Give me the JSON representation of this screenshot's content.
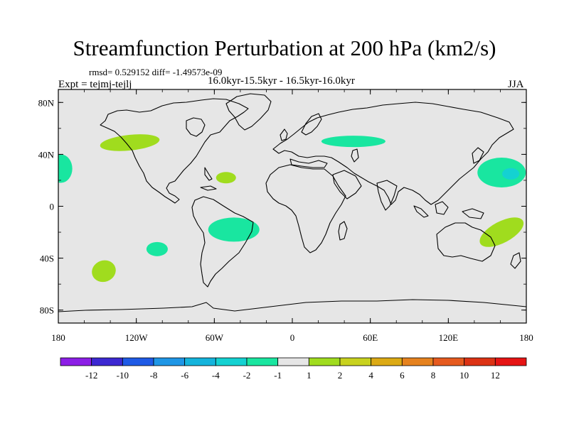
{
  "chart_data": {
    "type": "contour_map",
    "title": "Streamfunction Perturbation at 200 hPa (km2/s)",
    "subtitle_left": "rmsd= 0.529152 diff= -1.49573e-09",
    "subtitle_center": "16.0kyr-15.5kyr - 16.5kyr-16.0kyr",
    "experiment": "Expt = tejmj-tejlj",
    "season": "JJA",
    "xlim": [
      -180,
      180
    ],
    "ylim": [
      -90,
      90
    ],
    "x_ticks": [
      {
        "value": -180,
        "label": "180"
      },
      {
        "value": -120,
        "label": "120W"
      },
      {
        "value": -60,
        "label": "60W"
      },
      {
        "value": 0,
        "label": "0"
      },
      {
        "value": 60,
        "label": "60E"
      },
      {
        "value": 120,
        "label": "120E"
      },
      {
        "value": 180,
        "label": "180"
      }
    ],
    "y_ticks": [
      {
        "value": 80,
        "label": "80N"
      },
      {
        "value": 40,
        "label": "40N"
      },
      {
        "value": 0,
        "label": "0"
      },
      {
        "value": -40,
        "label": "40S"
      },
      {
        "value": -80,
        "label": "80S"
      }
    ],
    "colorbar": {
      "labels": [
        "-12",
        "-10",
        "-8",
        "-6",
        "-4",
        "-2",
        "-1",
        "1",
        "2",
        "4",
        "6",
        "8",
        "10",
        "12"
      ],
      "colors": [
        "#8c1ee6",
        "#3c28d2",
        "#1e5ae6",
        "#1e96e6",
        "#14b4dc",
        "#14d2d2",
        "#19e6a0",
        "#e6e6e6",
        "#a0dc1e",
        "#c8d21e",
        "#dcaa14",
        "#e6821e",
        "#e65a1e",
        "#dc3214",
        "#e61414"
      ]
    },
    "background_color": "#e6e6e6",
    "anomalies": [
      {
        "region": "North Pacific / western North America",
        "lon": -125,
        "lat": 49,
        "category": "1 to 2"
      },
      {
        "region": "North Pacific (dateline, west)",
        "lon": -178,
        "lat": 29,
        "category": "-2 to -1"
      },
      {
        "region": "North Atlantic",
        "lon": -51,
        "lat": 22,
        "category": "1 to 2"
      },
      {
        "region": "Central Eurasia",
        "lon": 47,
        "lat": 50,
        "category": "-2 to -1"
      },
      {
        "region": "Northwest Pacific",
        "lon": 161,
        "lat": 26,
        "category": "-2 to -1"
      },
      {
        "region": "Northwest Pacific core",
        "lon": 168,
        "lat": 25,
        "category": "-4 to -2"
      },
      {
        "region": "Eastern South America / South Atlantic",
        "lon": -45,
        "lat": -18,
        "category": "-2 to -1"
      },
      {
        "region": "Southeast Pacific",
        "lon": -104,
        "lat": -33,
        "category": "-2 to -1"
      },
      {
        "region": "South Pacific",
        "lon": -145,
        "lat": -50,
        "category": "1 to 2"
      },
      {
        "region": "Southwest Pacific / eastern Australia",
        "lon": 161,
        "lat": -20,
        "category": "1 to 2"
      }
    ]
  }
}
